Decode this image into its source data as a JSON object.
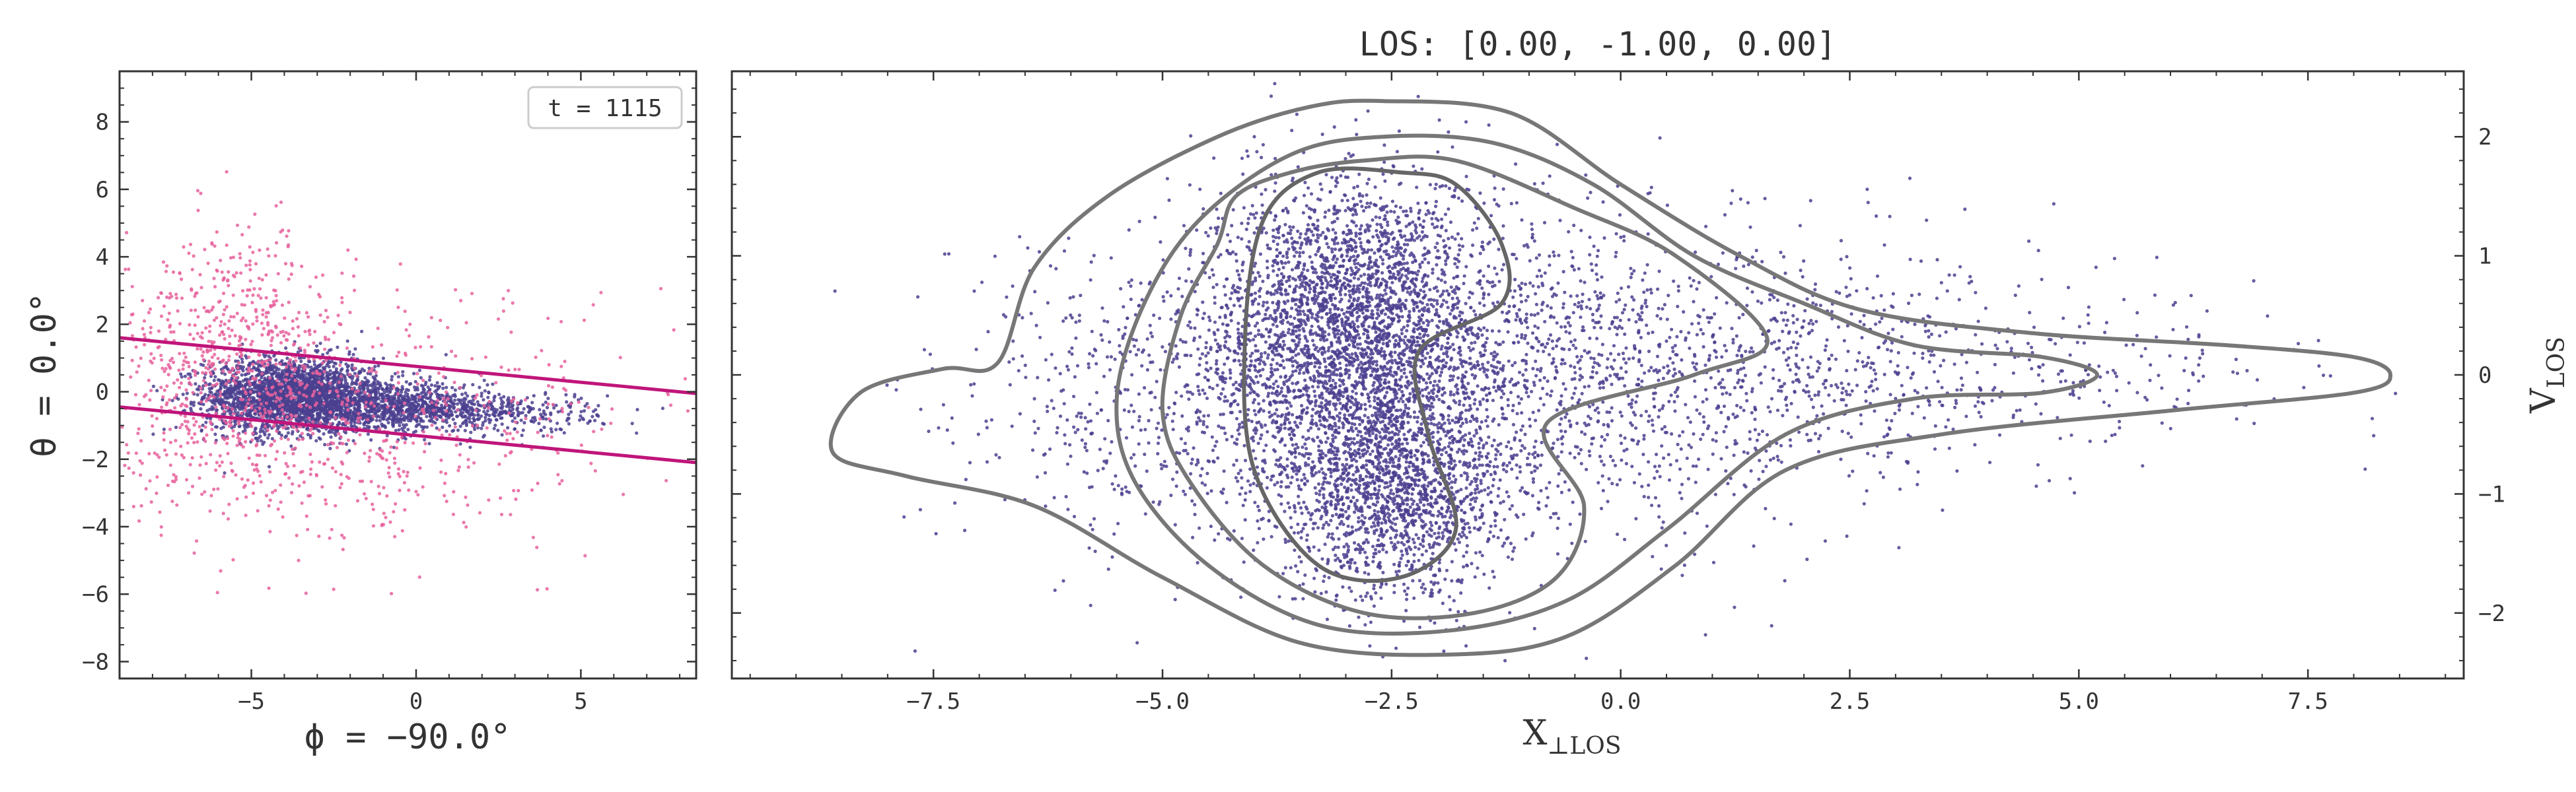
{
  "chart_data": [
    {
      "type": "scatter",
      "xlim": [
        -9,
        8.5
      ],
      "ylim": [
        -8.5,
        9.5
      ],
      "xticks": [
        -5,
        0,
        5
      ],
      "yticks": [
        -8,
        -6,
        -4,
        -2,
        0,
        2,
        4,
        6,
        8
      ],
      "xtick_labels": [
        "−5",
        "0",
        "5"
      ],
      "ytick_labels": [
        "−8",
        "−6",
        "−4",
        "−2",
        "0",
        "2",
        "4",
        "6",
        "8"
      ],
      "xlabel": "ϕ = −90.0°",
      "ylabel": "θ = 0.0°",
      "annotation": "t = 1115",
      "legend_placement": "top-right",
      "grid": false,
      "series": [
        {
          "name": "",
          "kind": "inside-band",
          "color": "#4b3f8f",
          "clusters": [
            {
              "center": [
                -3.8,
                -0.1
              ],
              "spread": [
                1.3,
                0.55
              ],
              "count": 2400
            },
            {
              "center": [
                -1.0,
                -0.45
              ],
              "spread": [
                1.6,
                0.35
              ],
              "count": 900
            },
            {
              "center": [
                2.0,
                -0.6
              ],
              "spread": [
                1.8,
                0.3
              ],
              "count": 400
            }
          ]
        },
        {
          "name": "",
          "kind": "outside-band",
          "color": "#e8619c",
          "clusters": [
            {
              "center": [
                -5.5,
                1.0
              ],
              "spread": [
                1.8,
                1.8
              ],
              "count": 650
            },
            {
              "center": [
                -3.0,
                -1.5
              ],
              "spread": [
                3.5,
                1.6
              ],
              "count": 450
            },
            {
              "center": [
                2.0,
                0.0
              ],
              "spread": [
                4.0,
                2.0
              ],
              "count": 160
            }
          ]
        }
      ],
      "boundary_lines": [
        {
          "x": [
            -9,
            8.5
          ],
          "y": [
            1.6,
            -0.05
          ],
          "color": "#c0157a"
        },
        {
          "x": [
            -9,
            8.5
          ],
          "y": [
            -0.45,
            -2.1
          ],
          "color": "#c0157a"
        }
      ]
    },
    {
      "type": "scatter",
      "title": "LOS: [0.00, -1.00, 0.00]",
      "xlim": [
        -9.7,
        9.2
      ],
      "ylim": [
        -2.55,
        2.55
      ],
      "xticks": [
        -7.5,
        -5.0,
        -2.5,
        0.0,
        2.5,
        5.0,
        7.5
      ],
      "yticks": [
        -2,
        -1,
        0,
        1,
        2
      ],
      "xtick_labels": [
        "−7.5",
        "−5.0",
        "−2.5",
        "0.0",
        "2.5",
        "5.0",
        "7.5"
      ],
      "ytick_labels": [
        "−2",
        "−1",
        "0",
        "1",
        "2"
      ],
      "xlabel": "X",
      "xlabel_sub": "⊥LOS",
      "ylabel": "V",
      "ylabel_sub": "LOS",
      "grid": false,
      "series": [
        {
          "name": "",
          "color": "#4b3f8f",
          "clusters": [
            {
              "center": [
                -2.9,
                0.6
              ],
              "spread": [
                0.75,
                0.55
              ],
              "count": 2200
            },
            {
              "center": [
                -2.4,
                -1.0
              ],
              "spread": [
                0.6,
                0.45
              ],
              "count": 1500
            },
            {
              "center": [
                -3.2,
                -0.2
              ],
              "spread": [
                0.9,
                0.6
              ],
              "count": 1100
            },
            {
              "center": [
                -1.2,
                0.0
              ],
              "spread": [
                1.8,
                0.7
              ],
              "count": 1400
            },
            {
              "center": [
                1.5,
                0.1
              ],
              "spread": [
                2.0,
                0.5
              ],
              "count": 700
            },
            {
              "center": [
                4.0,
                0.0
              ],
              "spread": [
                2.0,
                0.3
              ],
              "count": 220
            },
            {
              "center": [
                -5.5,
                -0.3
              ],
              "spread": [
                1.2,
                0.7
              ],
              "count": 380
            }
          ]
        }
      ],
      "contours": [
        {
          "color": "#666666",
          "points": [
            [
              -2.4,
              1.7
            ],
            [
              -1.8,
              1.6
            ],
            [
              -1.3,
              1.1
            ],
            [
              -1.3,
              0.6
            ],
            [
              -2.2,
              0.2
            ],
            [
              -2.1,
              -0.5
            ],
            [
              -1.8,
              -1.3
            ],
            [
              -2.4,
              -1.7
            ],
            [
              -3.3,
              -1.6
            ],
            [
              -4.0,
              -0.8
            ],
            [
              -4.1,
              0.3
            ],
            [
              -3.9,
              1.3
            ],
            [
              -3.3,
              1.7
            ]
          ]
        },
        {
          "color": "#777777",
          "points": [
            [
              -2.8,
              1.8
            ],
            [
              -1.8,
              1.8
            ],
            [
              -0.5,
              1.4
            ],
            [
              0.6,
              1.0
            ],
            [
              1.6,
              0.3
            ],
            [
              0.8,
              0.0
            ],
            [
              -0.8,
              -0.4
            ],
            [
              -0.4,
              -1.1
            ],
            [
              -0.7,
              -1.7
            ],
            [
              -1.6,
              -2.0
            ],
            [
              -2.8,
              -2.0
            ],
            [
              -3.9,
              -1.6
            ],
            [
              -4.7,
              -0.9
            ],
            [
              -5.0,
              -0.3
            ],
            [
              -4.8,
              0.5
            ],
            [
              -4.4,
              1.1
            ],
            [
              -4.2,
              1.5
            ],
            [
              -3.6,
              1.7
            ]
          ]
        },
        {
          "color": "#777777",
          "points": [
            [
              -2.6,
              2.0
            ],
            [
              -1.4,
              1.95
            ],
            [
              -0.3,
              1.6
            ],
            [
              0.8,
              1.0
            ],
            [
              2.0,
              0.6
            ],
            [
              3.2,
              0.25
            ],
            [
              4.6,
              0.15
            ],
            [
              5.2,
              0.0
            ],
            [
              4.6,
              -0.15
            ],
            [
              3.2,
              -0.2
            ],
            [
              1.8,
              -0.5
            ],
            [
              0.5,
              -1.3
            ],
            [
              -0.6,
              -1.9
            ],
            [
              -1.9,
              -2.15
            ],
            [
              -3.3,
              -2.1
            ],
            [
              -4.5,
              -1.6
            ],
            [
              -5.3,
              -0.9
            ],
            [
              -5.5,
              -0.2
            ],
            [
              -5.2,
              0.6
            ],
            [
              -4.6,
              1.3
            ],
            [
              -3.6,
              1.85
            ]
          ]
        },
        {
          "color": "#777777",
          "points": [
            [
              -2.6,
              2.3
            ],
            [
              -1.2,
              2.2
            ],
            [
              0.0,
              1.6
            ],
            [
              1.3,
              1.0
            ],
            [
              2.6,
              0.55
            ],
            [
              4.5,
              0.35
            ],
            [
              6.6,
              0.25
            ],
            [
              8.0,
              0.15
            ],
            [
              8.4,
              0.0
            ],
            [
              8.0,
              -0.15
            ],
            [
              6.0,
              -0.3
            ],
            [
              3.5,
              -0.5
            ],
            [
              1.8,
              -0.8
            ],
            [
              0.6,
              -1.6
            ],
            [
              -0.6,
              -2.2
            ],
            [
              -1.9,
              -2.35
            ],
            [
              -3.5,
              -2.25
            ],
            [
              -5.0,
              -1.7
            ],
            [
              -6.4,
              -1.1
            ],
            [
              -7.8,
              -0.85
            ],
            [
              -8.6,
              -0.65
            ],
            [
              -8.3,
              -0.15
            ],
            [
              -7.4,
              0.05
            ],
            [
              -6.8,
              0.1
            ],
            [
              -6.4,
              0.9
            ],
            [
              -5.6,
              1.5
            ],
            [
              -4.4,
              2.0
            ],
            [
              -3.4,
              2.25
            ]
          ]
        }
      ]
    }
  ]
}
